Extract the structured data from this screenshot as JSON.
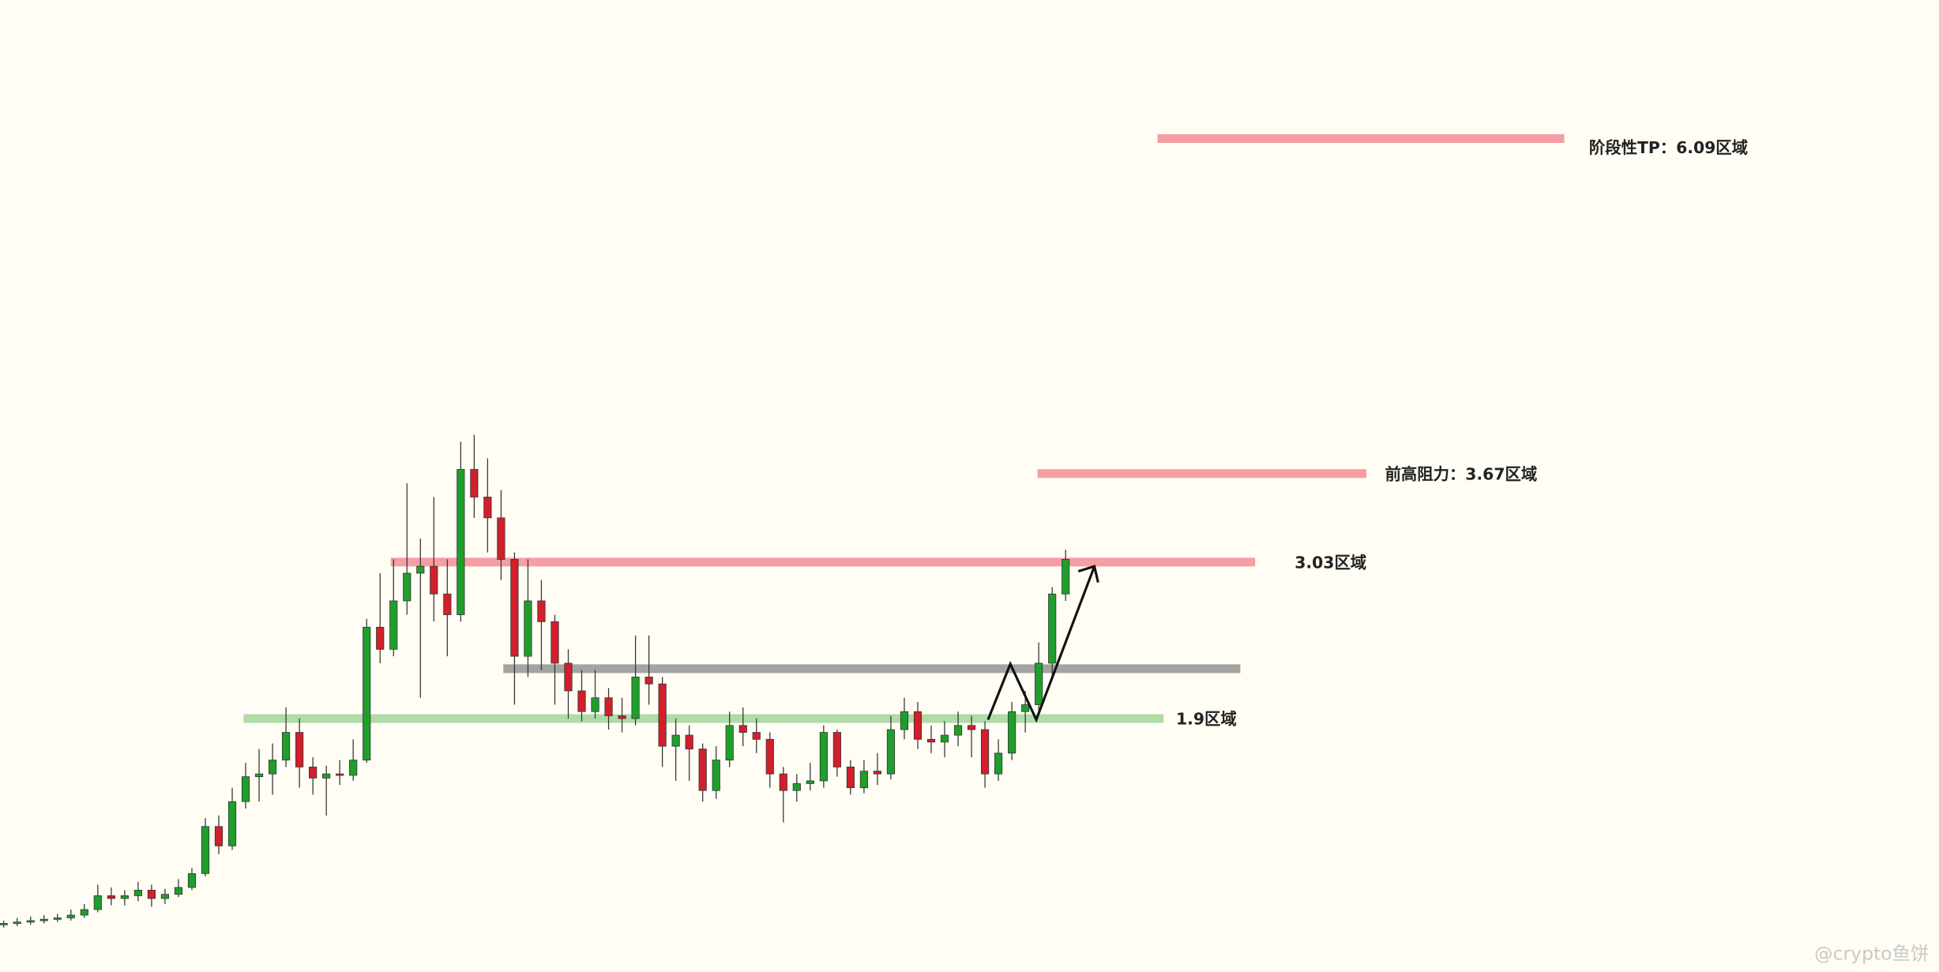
{
  "chart_data": {
    "type": "candlestick",
    "ylim": [
      0.07,
      7.09
    ],
    "up_color": "#1f9e2c",
    "down_color": "#d11f2b",
    "open": [
      0.41,
      0.42,
      0.43,
      0.44,
      0.45,
      0.46,
      0.48,
      0.52,
      0.62,
      0.6,
      0.62,
      0.66,
      0.6,
      0.63,
      0.68,
      0.78,
      1.12,
      0.98,
      1.3,
      1.48,
      1.5,
      1.6,
      1.8,
      1.55,
      1.47,
      1.5,
      1.49,
      1.6,
      2.56,
      2.4,
      2.75,
      2.95,
      3.0,
      2.8,
      2.65,
      3.7,
      3.5,
      3.35,
      3.05,
      2.35,
      2.75,
      2.6,
      2.3,
      2.1,
      1.95,
      2.05,
      1.92,
      1.9,
      2.2,
      2.15,
      1.7,
      1.78,
      1.68,
      1.38,
      1.6,
      1.85,
      1.8,
      1.75,
      1.5,
      1.38,
      1.43,
      1.45,
      1.8,
      1.55,
      1.4,
      1.52,
      1.5,
      1.82,
      1.95,
      1.75,
      1.73,
      1.78,
      1.85,
      1.82,
      1.5,
      1.65,
      1.95,
      2.0,
      2.3,
      2.8
    ],
    "high": [
      0.44,
      0.46,
      0.47,
      0.48,
      0.49,
      0.52,
      0.56,
      0.7,
      0.68,
      0.66,
      0.72,
      0.7,
      0.67,
      0.74,
      0.82,
      1.18,
      1.2,
      1.4,
      1.58,
      1.68,
      1.72,
      1.98,
      1.9,
      1.62,
      1.56,
      1.6,
      1.75,
      2.62,
      2.95,
      3.05,
      3.6,
      3.2,
      3.5,
      3.05,
      3.9,
      3.95,
      3.78,
      3.55,
      3.1,
      3.05,
      2.9,
      2.65,
      2.4,
      2.25,
      2.25,
      2.12,
      2.05,
      2.5,
      2.5,
      2.2,
      1.9,
      1.85,
      1.72,
      1.7,
      1.95,
      1.98,
      1.9,
      1.8,
      1.55,
      1.5,
      1.58,
      1.85,
      1.82,
      1.6,
      1.6,
      1.65,
      1.92,
      2.05,
      2.02,
      1.85,
      1.88,
      1.95,
      1.92,
      1.88,
      1.75,
      2.02,
      2.1,
      2.45,
      2.85,
      3.12
    ],
    "low": [
      0.39,
      0.4,
      0.41,
      0.42,
      0.43,
      0.44,
      0.46,
      0.5,
      0.55,
      0.55,
      0.58,
      0.54,
      0.56,
      0.61,
      0.66,
      0.76,
      0.92,
      0.95,
      1.25,
      1.3,
      1.35,
      1.55,
      1.4,
      1.35,
      1.2,
      1.42,
      1.45,
      1.58,
      2.3,
      2.35,
      2.65,
      2.05,
      2.6,
      2.35,
      2.6,
      3.35,
      3.1,
      2.9,
      2.0,
      2.2,
      2.25,
      2.0,
      1.9,
      1.88,
      1.9,
      1.82,
      1.8,
      1.85,
      2.0,
      1.55,
      1.45,
      1.45,
      1.3,
      1.32,
      1.55,
      1.7,
      1.65,
      1.4,
      1.15,
      1.3,
      1.38,
      1.4,
      1.48,
      1.35,
      1.36,
      1.42,
      1.46,
      1.75,
      1.68,
      1.65,
      1.62,
      1.7,
      1.62,
      1.4,
      1.45,
      1.6,
      1.8,
      1.95,
      2.2,
      2.75
    ],
    "close": [
      0.42,
      0.43,
      0.44,
      0.45,
      0.46,
      0.48,
      0.52,
      0.62,
      0.6,
      0.62,
      0.66,
      0.6,
      0.63,
      0.68,
      0.78,
      1.12,
      0.98,
      1.3,
      1.48,
      1.5,
      1.6,
      1.8,
      1.55,
      1.47,
      1.5,
      1.49,
      1.6,
      2.56,
      2.4,
      2.75,
      2.95,
      3.0,
      2.8,
      2.65,
      3.7,
      3.5,
      3.35,
      3.05,
      2.35,
      2.75,
      2.6,
      2.3,
      2.1,
      1.95,
      2.05,
      1.92,
      1.9,
      2.2,
      2.15,
      1.7,
      1.78,
      1.68,
      1.38,
      1.6,
      1.85,
      1.8,
      1.75,
      1.5,
      1.38,
      1.43,
      1.45,
      1.8,
      1.55,
      1.4,
      1.52,
      1.5,
      1.82,
      1.95,
      1.75,
      1.73,
      1.78,
      1.85,
      1.82,
      1.5,
      1.65,
      1.95,
      2.0,
      2.3,
      2.8,
      3.05
    ],
    "levels": [
      {
        "value": 6.09,
        "color": "#f59ea4",
        "label": "阶段性TP：6.09区域"
      },
      {
        "value": 3.67,
        "color": "#f59ea4",
        "label": "前高阻力：3.67区域"
      },
      {
        "value": 3.03,
        "color": "#f59ea4",
        "label": "3.03区域"
      },
      {
        "value": 2.26,
        "color": "#a3a3a3"
      },
      {
        "value": 1.9,
        "color": "#afdba8",
        "label": "1.9区域"
      }
    ],
    "watermark": "@crypto鱼饼"
  }
}
